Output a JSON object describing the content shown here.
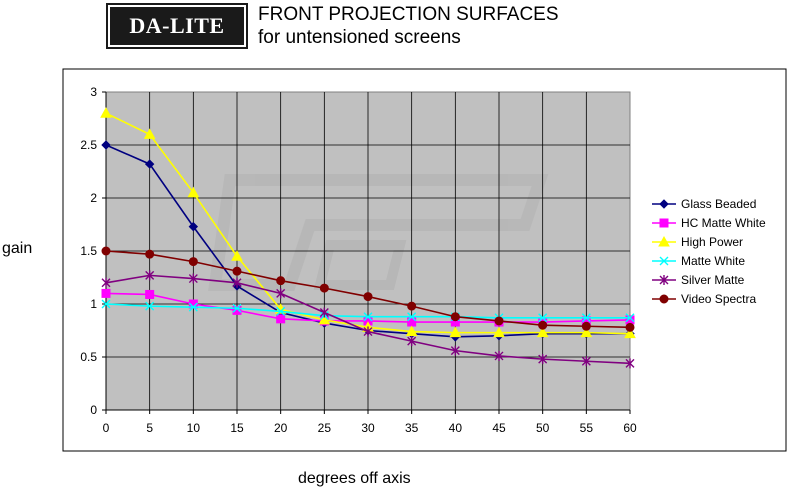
{
  "logo": {
    "text": "DA-LITE"
  },
  "title": {
    "line1": "FRONT PROJECTION SURFACES",
    "line2": "for untensioned screens"
  },
  "chart_data": {
    "type": "line",
    "x": [
      0,
      5,
      10,
      15,
      20,
      25,
      30,
      35,
      40,
      45,
      50,
      55,
      60
    ],
    "xlabel": "degrees off axis",
    "ylabel": "gain",
    "xlim": [
      0,
      60
    ],
    "ylim": [
      0,
      3
    ],
    "xticks": [
      "0",
      "5",
      "10",
      "15",
      "20",
      "25",
      "30",
      "35",
      "40",
      "45",
      "50",
      "55",
      "60"
    ],
    "yticks": [
      "0",
      "0.5",
      "1",
      "1.5",
      "2",
      "2.5",
      "3"
    ],
    "grid": true,
    "legend_position": "right",
    "series": [
      {
        "name": "Glass Beaded",
        "color": "#000080",
        "marker": "diamond",
        "values": [
          2.5,
          2.32,
          1.73,
          1.17,
          0.92,
          0.82,
          0.75,
          0.72,
          0.69,
          0.7,
          0.72,
          0.72,
          0.72
        ]
      },
      {
        "name": "HC Matte White",
        "color": "#ff00ff",
        "marker": "square",
        "values": [
          1.1,
          1.09,
          1.0,
          0.94,
          0.86,
          0.84,
          0.84,
          0.83,
          0.83,
          0.83,
          0.83,
          0.84,
          0.85
        ]
      },
      {
        "name": "High Power",
        "color": "#ffff00",
        "marker": "triangle",
        "values": [
          2.8,
          2.6,
          2.05,
          1.45,
          0.95,
          0.85,
          0.78,
          0.74,
          0.73,
          0.73,
          0.73,
          0.73,
          0.72
        ]
      },
      {
        "name": "Matte White",
        "color": "#00ffff",
        "marker": "x",
        "values": [
          1.0,
          0.98,
          0.97,
          0.96,
          0.93,
          0.89,
          0.88,
          0.88,
          0.88,
          0.87,
          0.87,
          0.87,
          0.87
        ]
      },
      {
        "name": "Silver Matte",
        "color": "#800080",
        "marker": "star",
        "values": [
          1.2,
          1.27,
          1.24,
          1.2,
          1.1,
          0.92,
          0.74,
          0.65,
          0.56,
          0.51,
          0.48,
          0.46,
          0.44
        ]
      },
      {
        "name": "Video Spectra",
        "color": "#800000",
        "marker": "circle",
        "values": [
          1.5,
          1.47,
          1.4,
          1.31,
          1.22,
          1.15,
          1.07,
          0.98,
          0.88,
          0.84,
          0.8,
          0.79,
          0.78
        ]
      }
    ]
  }
}
